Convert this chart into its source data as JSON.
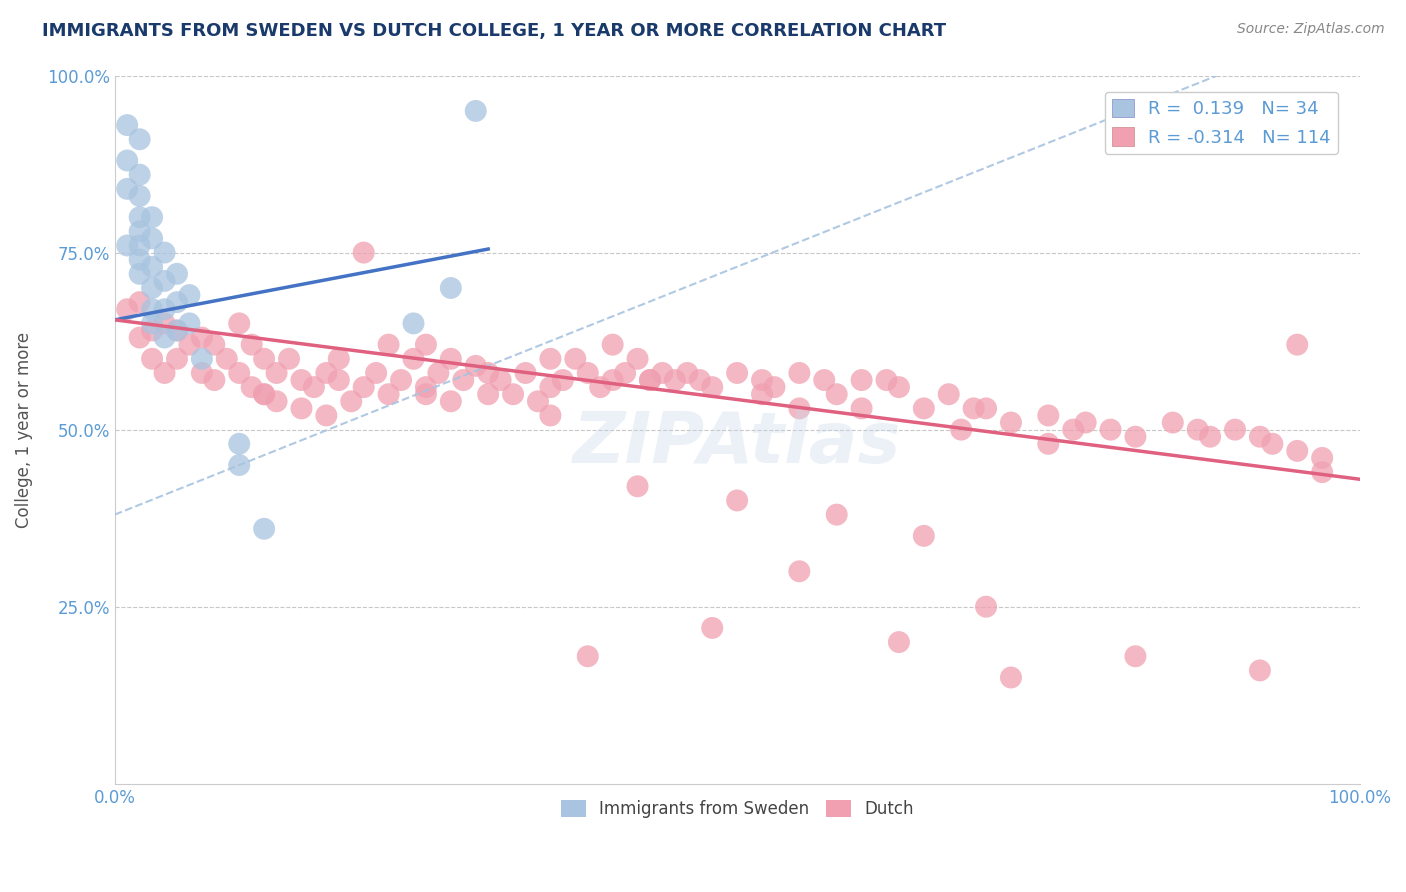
{
  "title": "IMMIGRANTS FROM SWEDEN VS DUTCH COLLEGE, 1 YEAR OR MORE CORRELATION CHART",
  "source_text": "Source: ZipAtlas.com",
  "ylabel": "College, 1 year or more",
  "xlim": [
    0.0,
    1.0
  ],
  "ylim": [
    0.0,
    1.0
  ],
  "r_sweden": 0.139,
  "n_sweden": 34,
  "r_dutch": -0.314,
  "n_dutch": 114,
  "legend_labels": [
    "Immigrants from Sweden",
    "Dutch"
  ],
  "color_sweden": "#a8c4e0",
  "color_dutch": "#f0a0b0",
  "line_color_sweden": "#4472c4",
  "line_color_dutch": "#e06080",
  "dashed_line_color": "#a8c4e0",
  "watermark": "ZIPAtlas",
  "sweden_x": [
    0.01,
    0.01,
    0.01,
    0.01,
    0.02,
    0.02,
    0.02,
    0.02,
    0.02,
    0.02,
    0.02,
    0.02,
    0.03,
    0.03,
    0.03,
    0.03,
    0.03,
    0.03,
    0.04,
    0.04,
    0.04,
    0.04,
    0.05,
    0.05,
    0.05,
    0.06,
    0.06,
    0.07,
    0.1,
    0.1,
    0.12,
    0.24,
    0.27,
    0.29
  ],
  "sweden_y": [
    0.93,
    0.88,
    0.84,
    0.76,
    0.91,
    0.86,
    0.83,
    0.8,
    0.78,
    0.76,
    0.74,
    0.72,
    0.8,
    0.77,
    0.73,
    0.7,
    0.67,
    0.65,
    0.75,
    0.71,
    0.67,
    0.63,
    0.72,
    0.68,
    0.64,
    0.69,
    0.65,
    0.6,
    0.48,
    0.45,
    0.36,
    0.65,
    0.7,
    0.95
  ],
  "dutch_x": [
    0.01,
    0.02,
    0.02,
    0.03,
    0.03,
    0.04,
    0.04,
    0.05,
    0.05,
    0.06,
    0.07,
    0.07,
    0.08,
    0.09,
    0.1,
    0.1,
    0.11,
    0.11,
    0.12,
    0.12,
    0.13,
    0.13,
    0.14,
    0.15,
    0.15,
    0.16,
    0.17,
    0.17,
    0.18,
    0.19,
    0.2,
    0.2,
    0.21,
    0.22,
    0.22,
    0.23,
    0.24,
    0.25,
    0.25,
    0.26,
    0.27,
    0.27,
    0.28,
    0.29,
    0.3,
    0.3,
    0.31,
    0.32,
    0.33,
    0.34,
    0.35,
    0.35,
    0.36,
    0.37,
    0.38,
    0.39,
    0.4,
    0.4,
    0.41,
    0.42,
    0.43,
    0.44,
    0.45,
    0.46,
    0.47,
    0.48,
    0.5,
    0.52,
    0.53,
    0.55,
    0.55,
    0.57,
    0.58,
    0.6,
    0.62,
    0.63,
    0.65,
    0.67,
    0.69,
    0.7,
    0.72,
    0.75,
    0.77,
    0.78,
    0.8,
    0.82,
    0.85,
    0.87,
    0.88,
    0.9,
    0.92,
    0.93,
    0.95,
    0.97,
    0.08,
    0.12,
    0.18,
    0.25,
    0.35,
    0.43,
    0.52,
    0.6,
    0.68,
    0.75,
    0.42,
    0.5,
    0.58,
    0.65,
    0.55,
    0.7,
    0.48,
    0.63,
    0.38,
    0.72,
    0.82,
    0.92,
    0.95,
    0.97
  ],
  "dutch_y": [
    0.67,
    0.68,
    0.63,
    0.64,
    0.6,
    0.65,
    0.58,
    0.64,
    0.6,
    0.62,
    0.63,
    0.58,
    0.62,
    0.6,
    0.65,
    0.58,
    0.62,
    0.56,
    0.6,
    0.55,
    0.58,
    0.54,
    0.6,
    0.57,
    0.53,
    0.56,
    0.58,
    0.52,
    0.6,
    0.54,
    0.75,
    0.56,
    0.58,
    0.62,
    0.55,
    0.57,
    0.6,
    0.62,
    0.56,
    0.58,
    0.6,
    0.54,
    0.57,
    0.59,
    0.58,
    0.55,
    0.57,
    0.55,
    0.58,
    0.54,
    0.6,
    0.56,
    0.57,
    0.6,
    0.58,
    0.56,
    0.62,
    0.57,
    0.58,
    0.6,
    0.57,
    0.58,
    0.57,
    0.58,
    0.57,
    0.56,
    0.58,
    0.57,
    0.56,
    0.58,
    0.53,
    0.57,
    0.55,
    0.57,
    0.57,
    0.56,
    0.53,
    0.55,
    0.53,
    0.53,
    0.51,
    0.52,
    0.5,
    0.51,
    0.5,
    0.49,
    0.51,
    0.5,
    0.49,
    0.5,
    0.49,
    0.48,
    0.47,
    0.46,
    0.57,
    0.55,
    0.57,
    0.55,
    0.52,
    0.57,
    0.55,
    0.53,
    0.5,
    0.48,
    0.42,
    0.4,
    0.38,
    0.35,
    0.3,
    0.25,
    0.22,
    0.2,
    0.18,
    0.15,
    0.18,
    0.16,
    0.62,
    0.44
  ]
}
